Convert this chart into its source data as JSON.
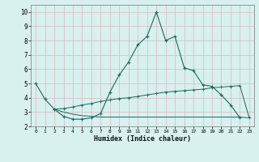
{
  "xlabel": "Humidex (Indice chaleur)",
  "x": [
    0,
    1,
    2,
    3,
    4,
    5,
    6,
    7,
    8,
    9,
    10,
    11,
    12,
    13,
    14,
    15,
    16,
    17,
    18,
    19,
    20,
    21,
    22,
    23
  ],
  "line1": [
    5.0,
    3.9,
    3.2,
    2.7,
    2.5,
    2.5,
    2.6,
    2.9,
    4.4,
    5.6,
    6.5,
    7.7,
    8.3,
    10.0,
    8.0,
    8.3,
    6.1,
    5.9,
    4.9,
    4.8,
    4.2,
    3.5,
    2.6,
    null
  ],
  "line2": [
    null,
    null,
    3.2,
    3.25,
    3.35,
    3.5,
    3.6,
    3.75,
    3.85,
    3.95,
    4.0,
    4.1,
    4.2,
    4.3,
    4.4,
    4.45,
    4.5,
    4.55,
    4.6,
    4.7,
    4.75,
    4.8,
    4.85,
    2.6
  ],
  "line3": [
    null,
    null,
    3.2,
    3.0,
    2.85,
    2.75,
    2.7,
    2.65,
    2.65,
    2.65,
    2.65,
    2.65,
    2.65,
    2.65,
    2.65,
    2.65,
    2.65,
    2.65,
    2.65,
    2.65,
    2.65,
    2.65,
    2.65,
    2.6
  ],
  "line_color": "#1a6b5e",
  "bg_color": "#d8f0ee",
  "grid_color_major": "#c8dede",
  "grid_color_minor": "#c8dede",
  "ylim": [
    2.0,
    10.5
  ],
  "xlim": [
    0,
    23
  ],
  "yticks": [
    2,
    3,
    4,
    5,
    6,
    7,
    8,
    9,
    10
  ],
  "xticks": [
    0,
    1,
    2,
    3,
    4,
    5,
    6,
    7,
    8,
    9,
    10,
    11,
    12,
    13,
    14,
    15,
    16,
    17,
    18,
    19,
    20,
    21,
    22,
    23
  ]
}
